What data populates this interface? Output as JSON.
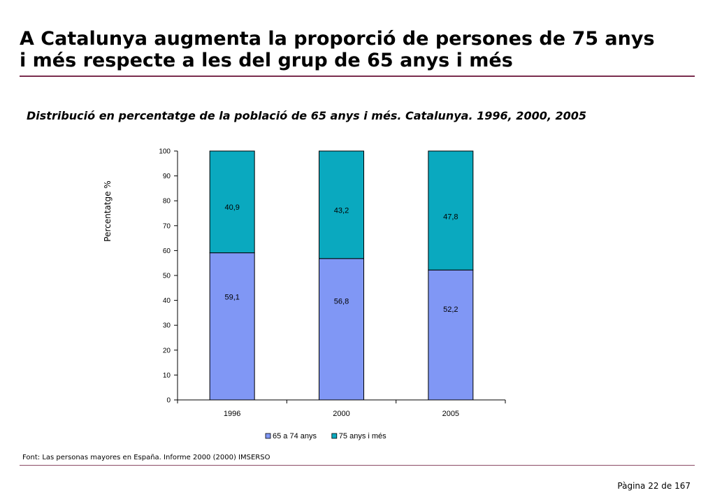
{
  "slide": {
    "title_line1": "A Catalunya augmenta la proporció de persones de 75 anys",
    "title_line2": "i més respecte a les del grup de 65 anys i més",
    "source": "Font: Las personas mayores en España. Informe 2000 (2000) IMSERSO",
    "page": "Pàgina 22 de 167"
  },
  "chart_data": {
    "type": "bar",
    "stacked": true,
    "title": "Distribució en percentatge de la població de 65 anys i més. Catalunya. 1996, 2000, 2005",
    "xlabel": "",
    "ylabel": "Percentatge %",
    "categories": [
      "1996",
      "2000",
      "2005"
    ],
    "ylim": [
      0,
      100
    ],
    "yticks": [
      0,
      10,
      20,
      30,
      40,
      50,
      60,
      70,
      80,
      90,
      100
    ],
    "grid": false,
    "legend": "bottom",
    "series": [
      {
        "name": "65 a 74 anys",
        "values": [
          59.1,
          56.8,
          52.2
        ],
        "labels": [
          "59,1",
          "56,8",
          "52,2"
        ],
        "color": "#8097f5"
      },
      {
        "name": "75 anys i més",
        "values": [
          40.9,
          43.2,
          47.8
        ],
        "labels": [
          "40,9",
          "43,2",
          "47,8"
        ],
        "color": "#0aa9bf"
      }
    ]
  }
}
